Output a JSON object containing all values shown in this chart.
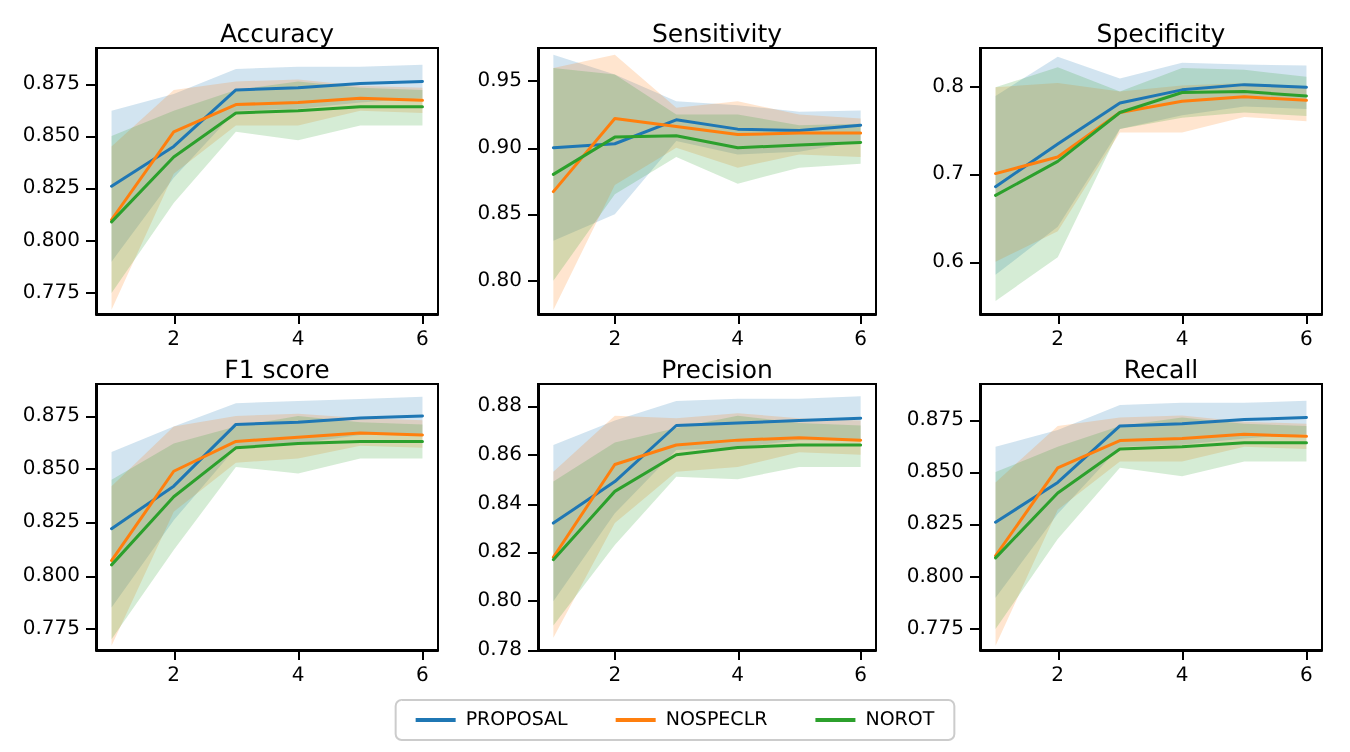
{
  "chart_data": [
    {
      "type": "line",
      "title": "Accuracy",
      "x": [
        1,
        2,
        3,
        4,
        5,
        6
      ],
      "xlim": [
        0.75,
        6.25
      ],
      "xticks": [
        2,
        4,
        6
      ],
      "ylim": [
        0.765,
        0.892
      ],
      "yticks": [
        {
          "value": 0.775,
          "label": "0.775"
        },
        {
          "value": 0.8,
          "label": "0.800"
        },
        {
          "value": 0.825,
          "label": "0.825"
        },
        {
          "value": 0.85,
          "label": "0.850"
        },
        {
          "value": 0.875,
          "label": "0.875"
        }
      ],
      "grid": false,
      "marker": "none",
      "series": [
        {
          "color": "#1f77b4",
          "values": [
            0.826,
            0.845,
            0.872,
            0.873,
            0.875,
            0.876
          ],
          "lower": [
            0.79,
            0.83,
            0.862,
            0.863,
            0.866,
            0.868
          ],
          "upper": [
            0.862,
            0.87,
            0.882,
            0.883,
            0.883,
            0.884
          ]
        },
        {
          "color": "#ff7f0e",
          "values": [
            0.81,
            0.852,
            0.865,
            0.866,
            0.868,
            0.867
          ],
          "lower": [
            0.767,
            0.832,
            0.855,
            0.855,
            0.862,
            0.861
          ],
          "upper": [
            0.845,
            0.872,
            0.876,
            0.877,
            0.874,
            0.873
          ]
        },
        {
          "color": "#2ca02c",
          "values": [
            0.809,
            0.84,
            0.861,
            0.862,
            0.864,
            0.864
          ],
          "lower": [
            0.775,
            0.818,
            0.852,
            0.848,
            0.855,
            0.855
          ],
          "upper": [
            0.85,
            0.862,
            0.872,
            0.876,
            0.873,
            0.872
          ]
        }
      ]
    },
    {
      "type": "line",
      "title": "Sensitivity",
      "x": [
        1,
        2,
        3,
        4,
        5,
        6
      ],
      "xlim": [
        0.75,
        6.25
      ],
      "xticks": [
        2,
        4,
        6
      ],
      "ylim": [
        0.775,
        0.975
      ],
      "yticks": [
        {
          "value": 0.8,
          "label": "0.80"
        },
        {
          "value": 0.85,
          "label": "0.85"
        },
        {
          "value": 0.9,
          "label": "0.90"
        },
        {
          "value": 0.95,
          "label": "0.95"
        }
      ],
      "grid": false,
      "marker": "none",
      "series": [
        {
          "color": "#1f77b4",
          "values": [
            0.9,
            0.903,
            0.921,
            0.914,
            0.913,
            0.917
          ],
          "lower": [
            0.83,
            0.85,
            0.905,
            0.895,
            0.897,
            0.905
          ],
          "upper": [
            0.97,
            0.955,
            0.935,
            0.932,
            0.927,
            0.928
          ]
        },
        {
          "color": "#ff7f0e",
          "values": [
            0.867,
            0.922,
            0.916,
            0.91,
            0.911,
            0.911
          ],
          "lower": [
            0.778,
            0.872,
            0.9,
            0.885,
            0.895,
            0.893
          ],
          "upper": [
            0.96,
            0.97,
            0.93,
            0.935,
            0.925,
            0.922
          ]
        },
        {
          "color": "#2ca02c",
          "values": [
            0.88,
            0.908,
            0.909,
            0.9,
            0.902,
            0.904
          ],
          "lower": [
            0.8,
            0.865,
            0.893,
            0.873,
            0.885,
            0.888
          ],
          "upper": [
            0.96,
            0.955,
            0.925,
            0.925,
            0.917,
            0.918
          ]
        }
      ]
    },
    {
      "type": "line",
      "title": "Specificity",
      "x": [
        1,
        2,
        3,
        4,
        5,
        6
      ],
      "xlim": [
        0.75,
        6.25
      ],
      "xticks": [
        2,
        4,
        6
      ],
      "ylim": [
        0.54,
        0.845
      ],
      "yticks": [
        0.6,
        0.7,
        0.8
      ],
      "grid": false,
      "marker": "none",
      "series": [
        {
          "color": "#1f77b4",
          "values": [
            0.686,
            0.735,
            0.782,
            0.797,
            0.803,
            0.8
          ],
          "lower": [
            0.585,
            0.64,
            0.752,
            0.768,
            0.778,
            0.775
          ],
          "upper": [
            0.79,
            0.835,
            0.81,
            0.828,
            0.826,
            0.825
          ]
        },
        {
          "color": "#ff7f0e",
          "values": [
            0.701,
            0.72,
            0.771,
            0.784,
            0.789,
            0.785
          ],
          "lower": [
            0.6,
            0.635,
            0.748,
            0.748,
            0.766,
            0.761
          ],
          "upper": [
            0.8,
            0.805,
            0.795,
            0.802,
            0.805,
            0.801
          ]
        },
        {
          "color": "#2ca02c",
          "values": [
            0.676,
            0.715,
            0.771,
            0.794,
            0.795,
            0.79
          ],
          "lower": [
            0.555,
            0.605,
            0.752,
            0.765,
            0.771,
            0.767
          ],
          "upper": [
            0.8,
            0.823,
            0.795,
            0.822,
            0.82,
            0.812
          ]
        }
      ]
    },
    {
      "type": "line",
      "title": "F1 score",
      "x": [
        1,
        2,
        3,
        4,
        5,
        6
      ],
      "xlim": [
        0.75,
        6.25
      ],
      "xticks": [
        2,
        4,
        6
      ],
      "ylim": [
        0.765,
        0.89
      ],
      "yticks": [
        {
          "value": 0.775,
          "label": "0.775"
        },
        {
          "value": 0.8,
          "label": "0.800"
        },
        {
          "value": 0.825,
          "label": "0.825"
        },
        {
          "value": 0.85,
          "label": "0.850"
        },
        {
          "value": 0.875,
          "label": "0.875"
        }
      ],
      "grid": false,
      "marker": "none",
      "series": [
        {
          "color": "#1f77b4",
          "values": [
            0.822,
            0.842,
            0.871,
            0.872,
            0.874,
            0.875
          ],
          "lower": [
            0.785,
            0.826,
            0.86,
            0.862,
            0.866,
            0.866
          ],
          "upper": [
            0.858,
            0.87,
            0.881,
            0.882,
            0.883,
            0.884
          ]
        },
        {
          "color": "#ff7f0e",
          "values": [
            0.807,
            0.849,
            0.863,
            0.865,
            0.867,
            0.866
          ],
          "lower": [
            0.767,
            0.83,
            0.853,
            0.855,
            0.861,
            0.86
          ],
          "upper": [
            0.842,
            0.87,
            0.875,
            0.876,
            0.874,
            0.873
          ]
        },
        {
          "color": "#2ca02c",
          "values": [
            0.805,
            0.837,
            0.86,
            0.862,
            0.863,
            0.863
          ],
          "lower": [
            0.77,
            0.812,
            0.851,
            0.848,
            0.855,
            0.855
          ],
          "upper": [
            0.845,
            0.862,
            0.87,
            0.875,
            0.872,
            0.871
          ]
        }
      ]
    },
    {
      "type": "line",
      "title": "Precision",
      "x": [
        1,
        2,
        3,
        4,
        5,
        6
      ],
      "xlim": [
        0.75,
        6.25
      ],
      "xticks": [
        2,
        4,
        6
      ],
      "ylim": [
        0.78,
        0.889
      ],
      "yticks": [
        {
          "value": 0.78,
          "label": "0.78"
        },
        {
          "value": 0.8,
          "label": "0.80"
        },
        {
          "value": 0.82,
          "label": "0.82"
        },
        {
          "value": 0.84,
          "label": "0.84"
        },
        {
          "value": 0.86,
          "label": "0.86"
        },
        {
          "value": 0.88,
          "label": "0.88"
        }
      ],
      "grid": false,
      "marker": "none",
      "legend": "bottom",
      "series": [
        {
          "name": "PROPOSAL",
          "color": "#1f77b4",
          "values": [
            0.832,
            0.849,
            0.872,
            0.873,
            0.874,
            0.875
          ],
          "lower": [
            0.8,
            0.836,
            0.862,
            0.863,
            0.866,
            0.866
          ],
          "upper": [
            0.864,
            0.874,
            0.882,
            0.883,
            0.883,
            0.884
          ]
        },
        {
          "name": "NOSPECLR",
          "color": "#ff7f0e",
          "values": [
            0.818,
            0.856,
            0.864,
            0.866,
            0.867,
            0.866
          ],
          "lower": [
            0.785,
            0.832,
            0.853,
            0.855,
            0.861,
            0.86
          ],
          "upper": [
            0.853,
            0.876,
            0.875,
            0.877,
            0.875,
            0.874
          ]
        },
        {
          "name": "NOROT",
          "color": "#2ca02c",
          "values": [
            0.817,
            0.845,
            0.86,
            0.863,
            0.864,
            0.864
          ],
          "lower": [
            0.79,
            0.823,
            0.851,
            0.85,
            0.855,
            0.855
          ],
          "upper": [
            0.849,
            0.865,
            0.871,
            0.876,
            0.873,
            0.872
          ]
        }
      ]
    },
    {
      "type": "line",
      "title": "Recall",
      "x": [
        1,
        2,
        3,
        4,
        5,
        6
      ],
      "xlim": [
        0.75,
        6.25
      ],
      "xticks": [
        2,
        4,
        6
      ],
      "ylim": [
        0.765,
        0.892
      ],
      "yticks": [
        {
          "value": 0.775,
          "label": "0.775"
        },
        {
          "value": 0.8,
          "label": "0.800"
        },
        {
          "value": 0.825,
          "label": "0.825"
        },
        {
          "value": 0.85,
          "label": "0.850"
        },
        {
          "value": 0.875,
          "label": "0.875"
        }
      ],
      "grid": false,
      "marker": "none",
      "series": [
        {
          "color": "#1f77b4",
          "values": [
            0.826,
            0.845,
            0.872,
            0.873,
            0.875,
            0.876
          ],
          "lower": [
            0.79,
            0.83,
            0.862,
            0.863,
            0.866,
            0.868
          ],
          "upper": [
            0.862,
            0.87,
            0.882,
            0.883,
            0.883,
            0.884
          ]
        },
        {
          "color": "#ff7f0e",
          "values": [
            0.81,
            0.852,
            0.865,
            0.866,
            0.868,
            0.867
          ],
          "lower": [
            0.767,
            0.832,
            0.855,
            0.855,
            0.862,
            0.861
          ],
          "upper": [
            0.845,
            0.872,
            0.876,
            0.877,
            0.874,
            0.873
          ]
        },
        {
          "color": "#2ca02c",
          "values": [
            0.809,
            0.84,
            0.861,
            0.862,
            0.864,
            0.864
          ],
          "lower": [
            0.775,
            0.818,
            0.852,
            0.848,
            0.855,
            0.855
          ],
          "upper": [
            0.85,
            0.862,
            0.872,
            0.876,
            0.873,
            0.872
          ]
        }
      ]
    }
  ]
}
